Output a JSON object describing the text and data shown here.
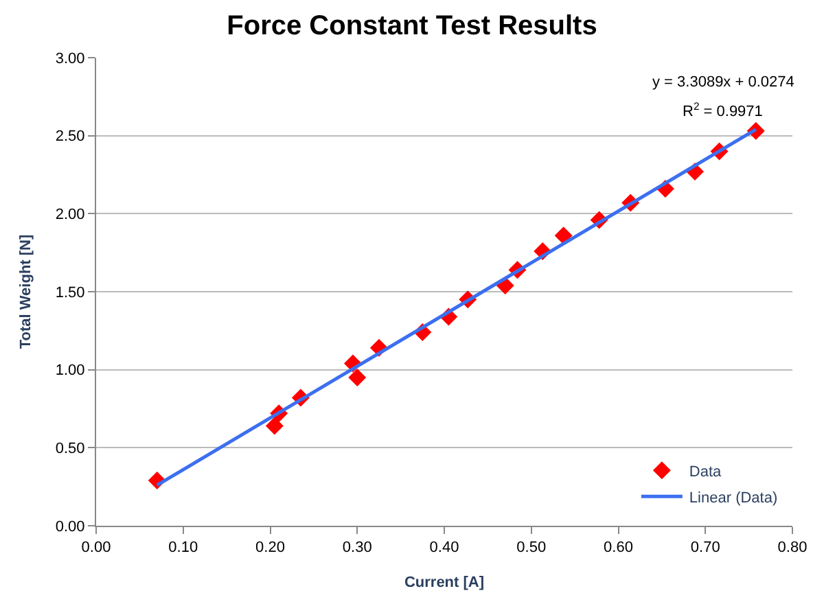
{
  "chart_data": {
    "type": "scatter",
    "title": "Force Constant Test Results",
    "xlabel": "Current [A]",
    "ylabel": "Total Weight [N]",
    "x": [
      0.07,
      0.205,
      0.21,
      0.235,
      0.295,
      0.3,
      0.325,
      0.375,
      0.405,
      0.427,
      0.47,
      0.484,
      0.513,
      0.537,
      0.578,
      0.614,
      0.654,
      0.688,
      0.716,
      0.758
    ],
    "series": [
      {
        "name": "Data",
        "color": "#ff0000",
        "marker": "diamond",
        "values": [
          0.29,
          0.64,
          0.72,
          0.82,
          1.04,
          0.95,
          1.14,
          1.24,
          1.34,
          1.45,
          1.54,
          1.64,
          1.76,
          1.86,
          1.96,
          2.07,
          2.16,
          2.27,
          2.4,
          2.53
        ]
      },
      {
        "name": "Linear (Data)",
        "color": "#3c6ff0",
        "type": "line",
        "marker": "none",
        "line_style": "solid",
        "x": [
          0.07,
          0.758
        ],
        "values": [
          0.26,
          2.54
        ]
      }
    ],
    "xlim": [
      0,
      0.8
    ],
    "xticks": [
      {
        "value": 0,
        "label": "0.00"
      },
      {
        "value": 0.1,
        "label": "0.10"
      },
      {
        "value": 0.2,
        "label": "0.20"
      },
      {
        "value": 0.3,
        "label": "0.30"
      },
      {
        "value": 0.4,
        "label": "0.40"
      },
      {
        "value": 0.5,
        "label": "0.50"
      },
      {
        "value": 0.6,
        "label": "0.60"
      },
      {
        "value": 0.7,
        "label": "0.70"
      },
      {
        "value": 0.8,
        "label": "0.80"
      }
    ],
    "ylim": [
      0,
      3
    ],
    "yticks": [
      {
        "value": 0,
        "label": "0.00"
      },
      {
        "value": 0.5,
        "label": "0.50"
      },
      {
        "value": 1,
        "label": "1.00"
      },
      {
        "value": 1.5,
        "label": "1.50"
      },
      {
        "value": 2,
        "label": "2.00"
      },
      {
        "value": 2.5,
        "label": "2.50"
      },
      {
        "value": 3,
        "label": "3.00"
      }
    ],
    "grid": "y",
    "legend": "bottom right",
    "annotations": [
      "y = 3.3089x + 0.0274",
      "R$^{2}$ = 0.9971"
    ]
  }
}
